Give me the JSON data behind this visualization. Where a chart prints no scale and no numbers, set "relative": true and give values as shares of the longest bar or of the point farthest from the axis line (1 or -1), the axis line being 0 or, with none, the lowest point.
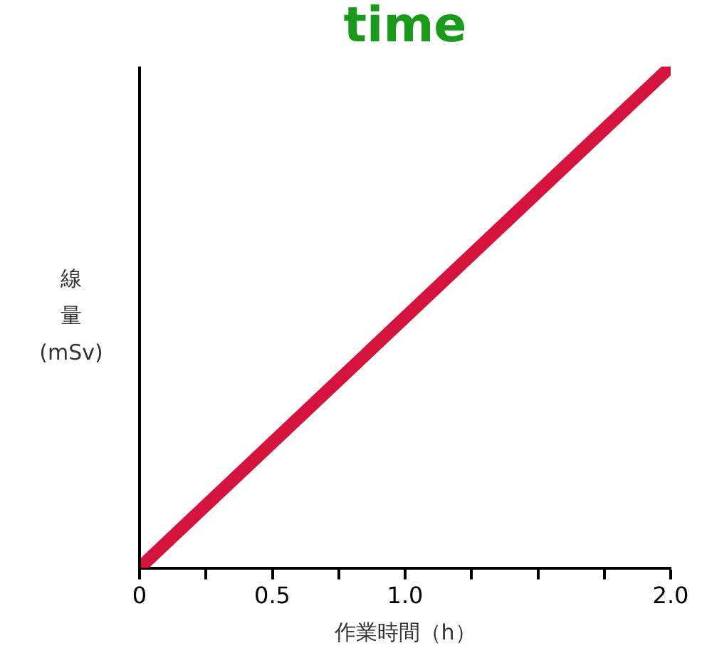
{
  "chart_data": {
    "type": "line",
    "title": "time",
    "xlabel": "作業時間（h）",
    "ylabel": "線量 (mSv)",
    "relative": true,
    "x": [
      0,
      2
    ],
    "series": [
      {
        "color": "#d4143c",
        "values": [
          0,
          1
        ]
      }
    ],
    "xlim": [
      0,
      2
    ],
    "xticks": [
      0,
      {
        "value": 0.25,
        "label": null
      },
      0.5,
      {
        "value": 0.75,
        "label": null
      },
      {
        "value": 1,
        "label": "1.0"
      },
      {
        "value": 1.25,
        "label": null
      },
      {
        "value": 1.5,
        "label": null
      },
      {
        "value": 1.75,
        "label": null
      },
      {
        "value": 2,
        "label": "2.0"
      }
    ],
    "grid": false,
    "legend": false,
    "marker": "none",
    "line_style": "solid"
  }
}
